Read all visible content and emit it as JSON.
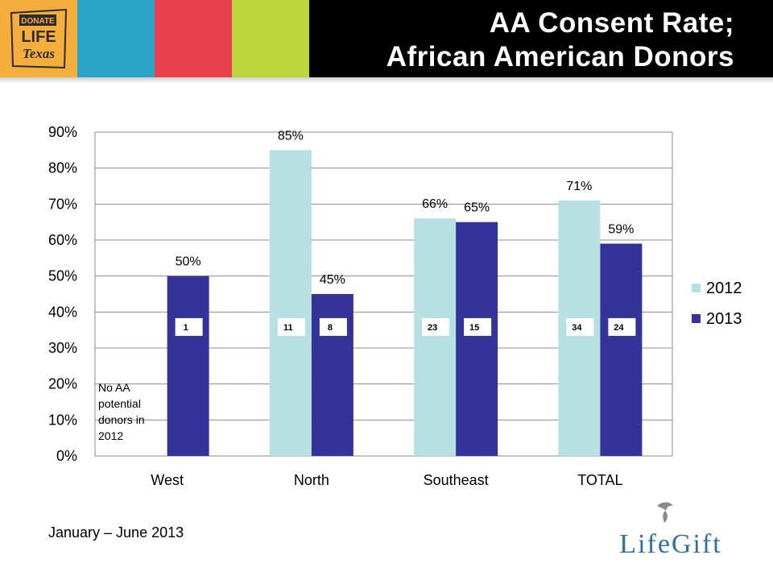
{
  "header": {
    "title_line1": "AA Consent Rate;",
    "title_line2": "African American Donors",
    "band_colors": [
      "#f5ad3c",
      "#2ba3c4",
      "#e8404a",
      "#bdd73a"
    ],
    "logo": {
      "icon": "donate-life-texas-logo",
      "line1": "DONATE",
      "line2": "LIFE",
      "line3": "Texas"
    }
  },
  "chart_data": {
    "type": "bar",
    "categories": [
      "West",
      "North",
      "Southeast",
      "TOTAL"
    ],
    "series": [
      {
        "name": "2012",
        "color": "#b7e0e2",
        "values": [
          null,
          85,
          66,
          71
        ],
        "data_labels": [
          "",
          "85%",
          "66%",
          "71%"
        ],
        "counts": [
          "",
          "11",
          "23",
          "34"
        ]
      },
      {
        "name": "2013",
        "color": "#333399",
        "values": [
          50,
          45,
          65,
          59
        ],
        "data_labels": [
          "50%",
          "45%",
          "65%",
          "59%"
        ],
        "counts": [
          "1",
          "8",
          "15",
          "24"
        ]
      }
    ],
    "ylim": [
      0,
      90
    ],
    "yticks": [
      "0%",
      "10%",
      "20%",
      "30%",
      "40%",
      "50%",
      "60%",
      "70%",
      "80%",
      "90%"
    ],
    "grid": true,
    "legend": "right",
    "annotation": "No AA potential donors in 2012"
  },
  "footnote": "January – June 2013",
  "brand": {
    "icon": "lifegift-dove-logo",
    "name": "LifeGift"
  }
}
